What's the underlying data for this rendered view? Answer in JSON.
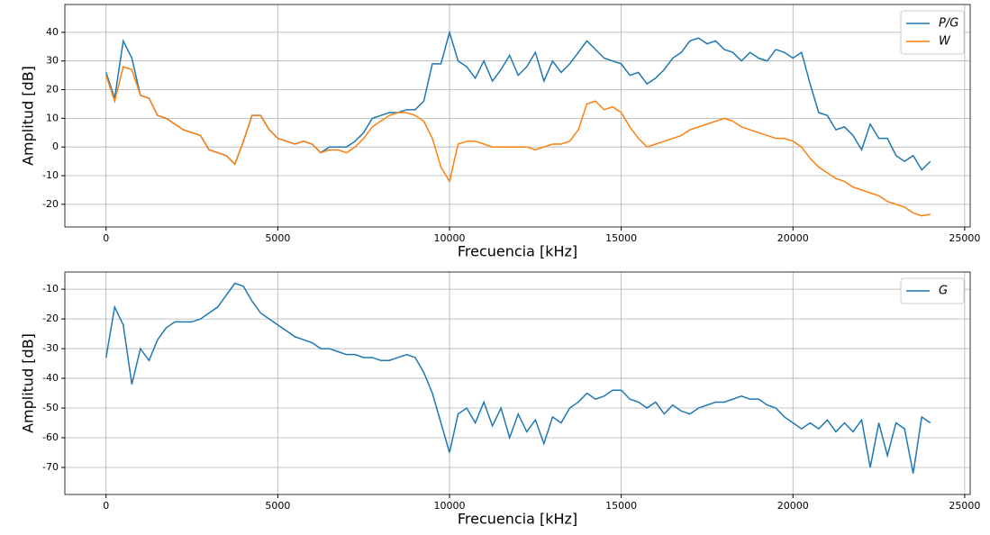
{
  "chart_data": [
    {
      "type": "line",
      "xlabel": "Frecuencia [kHz]",
      "ylabel": "Amplitud [dB]",
      "x": [
        0,
        250,
        500,
        750,
        1000,
        1250,
        1500,
        1750,
        2000,
        2250,
        2500,
        2750,
        3000,
        3250,
        3500,
        3750,
        4000,
        4250,
        4500,
        4750,
        5000,
        5250,
        5500,
        5750,
        6000,
        6250,
        6500,
        6750,
        7000,
        7250,
        7500,
        7750,
        8000,
        8250,
        8500,
        8750,
        9000,
        9250,
        9500,
        9750,
        10000,
        10250,
        10500,
        10750,
        11000,
        11250,
        11500,
        11750,
        12000,
        12250,
        12500,
        12750,
        13000,
        13250,
        13500,
        13750,
        14000,
        14250,
        14500,
        14750,
        15000,
        15250,
        15500,
        15750,
        16000,
        16250,
        16500,
        16750,
        17000,
        17250,
        17500,
        17750,
        18000,
        18250,
        18500,
        18750,
        19000,
        19250,
        19500,
        19750,
        20000,
        20250,
        20500,
        20750,
        21000,
        21250,
        21500,
        21750,
        22000,
        22250,
        22500,
        22750,
        23000,
        23250,
        23500,
        23750,
        24000
      ],
      "series": [
        {
          "name": "P/G",
          "color": "#1f77b4",
          "values": [
            26,
            17,
            37,
            31,
            18,
            17,
            11,
            10,
            8,
            6,
            5,
            4,
            -1,
            -2,
            -3,
            -6,
            2,
            11,
            11,
            6,
            3,
            2,
            1,
            2,
            1,
            -2,
            0,
            0,
            0,
            2,
            5,
            10,
            11,
            12,
            12,
            13,
            13,
            16,
            29,
            29,
            40,
            30,
            28,
            24,
            30,
            23,
            27,
            32,
            25,
            28,
            33,
            23,
            30,
            26,
            29,
            33,
            37,
            34,
            31,
            30,
            29,
            25,
            26,
            22,
            24,
            27,
            31,
            33,
            37,
            38,
            36,
            37,
            34,
            33,
            30,
            33,
            31,
            30,
            34,
            33,
            31,
            33,
            22,
            12,
            11,
            6,
            7,
            4,
            -1,
            8,
            3,
            3,
            -3,
            -5,
            -3,
            -8,
            -5
          ]
        },
        {
          "name": "W",
          "color": "#ff7f0e",
          "values": [
            25,
            16,
            28,
            27,
            18,
            17,
            11,
            10,
            8,
            6,
            5,
            4,
            -1,
            -2,
            -3,
            -6,
            2,
            11,
            11,
            6,
            3,
            2,
            1,
            2,
            1,
            -2,
            -1,
            -1,
            -2,
            0,
            3,
            7,
            9,
            11,
            12,
            12,
            11,
            9,
            3,
            -7,
            -12,
            1,
            2,
            2,
            1,
            0,
            0,
            0,
            0,
            0,
            -1,
            0,
            1,
            1,
            2,
            6,
            15,
            16,
            13,
            14,
            12,
            7,
            3,
            0,
            1,
            2,
            3,
            4,
            6,
            7,
            8,
            9,
            10,
            9,
            7,
            6,
            5,
            4,
            3,
            3,
            2,
            0,
            -4,
            -7,
            -9,
            -11,
            -12,
            -14,
            -15,
            -16,
            -17,
            -19,
            -20,
            -21,
            -23,
            -24,
            -23.5
          ]
        }
      ],
      "xlim": [
        -1200,
        25160
      ],
      "ylim": [
        -27.9,
        49.7
      ],
      "xticks": [
        0,
        5000,
        10000,
        15000,
        20000,
        25000
      ],
      "yticks": [
        -20,
        -10,
        0,
        10,
        20,
        30,
        40
      ],
      "grid": true,
      "legend": "upper right"
    },
    {
      "type": "line",
      "xlabel": "Frecuencia [kHz]",
      "ylabel": "Amplitud [dB]",
      "x": [
        0,
        250,
        500,
        750,
        1000,
        1250,
        1500,
        1750,
        2000,
        2250,
        2500,
        2750,
        3000,
        3250,
        3500,
        3750,
        4000,
        4250,
        4500,
        4750,
        5000,
        5250,
        5500,
        5750,
        6000,
        6250,
        6500,
        6750,
        7000,
        7250,
        7500,
        7750,
        8000,
        8250,
        8500,
        8750,
        9000,
        9250,
        9500,
        9750,
        10000,
        10250,
        10500,
        10750,
        11000,
        11250,
        11500,
        11750,
        12000,
        12250,
        12500,
        12750,
        13000,
        13250,
        13500,
        13750,
        14000,
        14250,
        14500,
        14750,
        15000,
        15250,
        15500,
        15750,
        16000,
        16250,
        16500,
        16750,
        17000,
        17250,
        17500,
        17750,
        18000,
        18250,
        18500,
        18750,
        19000,
        19250,
        19500,
        19750,
        20000,
        20250,
        20500,
        20750,
        21000,
        21250,
        21500,
        21750,
        22000,
        22250,
        22500,
        22750,
        23000,
        23250,
        23500,
        23750,
        24000
      ],
      "series": [
        {
          "name": "G",
          "color": "#1f77b4",
          "values": [
            -33,
            -16,
            -22,
            -42,
            -30,
            -34,
            -27,
            -23,
            -21,
            -21,
            -21,
            -20,
            -18,
            -16,
            -12,
            -8,
            -9,
            -14,
            -18,
            -20,
            -22,
            -24,
            -26,
            -27,
            -28,
            -30,
            -30,
            -31,
            -32,
            -32,
            -33,
            -33,
            -34,
            -34,
            -33,
            -32,
            -33,
            -38,
            -45,
            -55,
            -65,
            -52,
            -50,
            -55,
            -48,
            -56,
            -50,
            -60,
            -52,
            -58,
            -54,
            -62,
            -53,
            -55,
            -50,
            -48,
            -45,
            -47,
            -46,
            -44,
            -44,
            -47,
            -48,
            -50,
            -48,
            -52,
            -49,
            -51,
            -52,
            -50,
            -49,
            -48,
            -48,
            -47,
            -46,
            -47,
            -47,
            -49,
            -50,
            -53,
            -55,
            -57,
            -55,
            -57,
            -54,
            -58,
            -55,
            -58,
            -54,
            -70,
            -55,
            -66,
            -55,
            -57,
            -72,
            -53,
            -55
          ]
        }
      ],
      "xlim": [
        -1200,
        25160
      ],
      "ylim": [
        -79.1,
        -4.2
      ],
      "xticks": [
        0,
        5000,
        10000,
        15000,
        20000,
        25000
      ],
      "yticks": [
        -70,
        -60,
        -50,
        -40,
        -30,
        -20,
        -10
      ],
      "grid": true,
      "legend": "upper right"
    }
  ]
}
